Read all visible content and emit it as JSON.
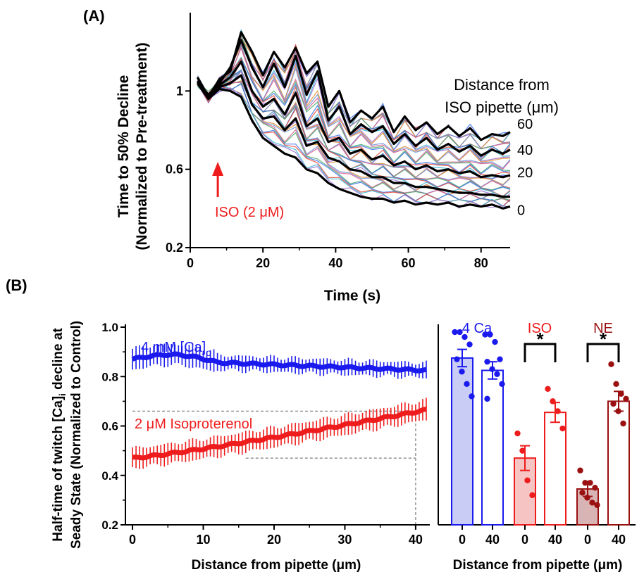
{
  "colors": {
    "blue": "#1a1aee",
    "red": "#ee1c1c",
    "darkred": "#9a1010",
    "black": "#000000"
  },
  "panel_a": {
    "label": "(A)",
    "legend_title_1": "Distance from",
    "legend_title_2": "ISO pipette (μm)",
    "ylabel_1": "Time to 50% Decline",
    "ylabel_2": "(Normalized to Pre-treatment)",
    "xlabel": "Time (s)",
    "annotation": "ISO (2 μM)",
    "distance_labels": [
      "60",
      "40",
      "20",
      "0"
    ]
  },
  "panel_b": {
    "label": "(B)",
    "ylabel_1": "Half-time of twitch [Ca]",
    "ylabel_sub": "i",
    "ylabel_1b": " decline at",
    "ylabel_2": "Seady State (Normalized to Control)",
    "xlabel_left": "Distance from pipette (μm)",
    "xlabel_right": "Distance from pipette (μm)",
    "series_blue_label": "4 mM [Ca]",
    "series_blue_sub": "o",
    "series_red_label": "2 μM Isoproterenol",
    "bar_group_labels": [
      "4 Ca",
      "ISO",
      "NE"
    ],
    "significance": "*"
  },
  "chart_data": [
    {
      "type": "line",
      "title": "(A)",
      "xlabel": "Time (s)",
      "ylabel": "Time to 50% Decline (Normalized to Pre-treatment)",
      "xlim": [
        0,
        88
      ],
      "ylim": [
        0.2,
        1.4
      ],
      "xticks": [
        0,
        20,
        40,
        60,
        80
      ],
      "yticks": [
        0.2,
        0.6,
        1.0
      ],
      "legend_title": "Distance from ISO pipette (μm)",
      "x": [
        2,
        5,
        8,
        11,
        14,
        17,
        20,
        23,
        26,
        29,
        32,
        35,
        38,
        41,
        44,
        47,
        50,
        53,
        56,
        59,
        62,
        65,
        68,
        71,
        74,
        77,
        80,
        83,
        86,
        88
      ],
      "series": [
        {
          "name": "60",
          "values": [
            1.07,
            0.97,
            1.06,
            1.1,
            1.3,
            1.2,
            1.08,
            1.2,
            1.12,
            1.22,
            1.09,
            1.15,
            0.92,
            1.0,
            0.84,
            0.9,
            0.86,
            0.92,
            0.79,
            0.87,
            0.8,
            0.84,
            0.78,
            0.82,
            0.77,
            0.81,
            0.75,
            0.78,
            0.77,
            0.79
          ]
        },
        {
          "name": "40",
          "values": [
            1.05,
            0.98,
            1.04,
            1.12,
            1.26,
            1.12,
            1.02,
            1.14,
            1.02,
            1.18,
            0.98,
            1.1,
            0.85,
            0.92,
            0.78,
            0.83,
            0.79,
            0.82,
            0.73,
            0.78,
            0.72,
            0.76,
            0.7,
            0.73,
            0.69,
            0.72,
            0.67,
            0.7,
            0.68,
            0.7
          ]
        },
        {
          "name": "20",
          "values": [
            1.05,
            0.96,
            1.03,
            1.07,
            1.15,
            1.0,
            0.92,
            0.96,
            0.88,
            0.99,
            0.82,
            0.86,
            0.74,
            0.76,
            0.68,
            0.7,
            0.65,
            0.67,
            0.62,
            0.64,
            0.6,
            0.62,
            0.59,
            0.6,
            0.58,
            0.59,
            0.56,
            0.57,
            0.56,
            0.57
          ]
        },
        {
          "name": "",
          "values": [
            1.04,
            0.96,
            1.02,
            1.04,
            1.08,
            0.93,
            0.86,
            0.87,
            0.8,
            0.86,
            0.72,
            0.74,
            0.66,
            0.64,
            0.6,
            0.59,
            0.56,
            0.56,
            0.53,
            0.53,
            0.51,
            0.51,
            0.5,
            0.49,
            0.48,
            0.48,
            0.47,
            0.47,
            0.46,
            0.46
          ]
        },
        {
          "name": "0",
          "values": [
            1.04,
            0.96,
            1.01,
            1.0,
            0.97,
            0.85,
            0.76,
            0.72,
            0.68,
            0.66,
            0.6,
            0.58,
            0.53,
            0.5,
            0.48,
            0.46,
            0.45,
            0.45,
            0.43,
            0.44,
            0.42,
            0.43,
            0.42,
            0.43,
            0.41,
            0.42,
            0.41,
            0.42,
            0.4,
            0.41
          ]
        }
      ],
      "annotation": {
        "text": "ISO (2 μM)",
        "x": 7
      }
    },
    {
      "type": "line",
      "title": "(B)",
      "xlabel": "Distance from pipette (μm)",
      "ylabel": "Half-time of twitch [Ca]i decline at Seady State (Normalized to Control)",
      "xlim": [
        -1,
        42
      ],
      "ylim": [
        0.2,
        1.0
      ],
      "xticks": [
        0,
        10,
        20,
        30,
        40
      ],
      "yticks": [
        0.2,
        0.4,
        0.6,
        0.8,
        1.0
      ],
      "x_step": 0.5,
      "series": [
        {
          "name": "4 mM [Ca]o",
          "start": 0.87,
          "end": 0.825,
          "error": 0.03
        },
        {
          "name": "2 μM Isoproterenol",
          "start": 0.47,
          "end": 0.665,
          "error": 0.04
        }
      ],
      "reference_lines": [
        {
          "y": 0.66,
          "x_start": 0,
          "x_end": 40
        },
        {
          "y": 0.47,
          "x_start": 16,
          "x_end": 40
        },
        {
          "x": 40,
          "y_start": 0.2,
          "y_end": 0.66
        }
      ]
    },
    {
      "type": "bar",
      "xlabel": "Distance from pipette (μm)",
      "ylim": [
        0.2,
        1.0
      ],
      "categories": [
        "0",
        "40",
        "0",
        "40",
        "0",
        "40"
      ],
      "groups": [
        "4 Ca",
        "ISO",
        "NE"
      ],
      "values": [
        0.875,
        0.825,
        0.47,
        0.655,
        0.345,
        0.7
      ],
      "errors": [
        0.035,
        0.035,
        0.05,
        0.04,
        0.03,
        0.04
      ],
      "points": [
        [
          0.98,
          0.98,
          0.96,
          0.93,
          0.87,
          0.82,
          0.77,
          0.72
        ],
        [
          0.97,
          0.97,
          0.94,
          0.87,
          0.86,
          0.83,
          0.81,
          0.77,
          0.71
        ],
        [
          0.57,
          0.5,
          0.38,
          0.32
        ],
        [
          0.75,
          0.7,
          0.66,
          0.59
        ],
        [
          0.42,
          0.37,
          0.37,
          0.35,
          0.33,
          0.31,
          0.29,
          0.28
        ],
        [
          0.85,
          0.77,
          0.73,
          0.71,
          0.69,
          0.66,
          0.61
        ]
      ],
      "significance": [
        {
          "between": [
            2,
            3
          ],
          "label": "*"
        },
        {
          "between": [
            4,
            5
          ],
          "label": "*"
        }
      ]
    }
  ]
}
